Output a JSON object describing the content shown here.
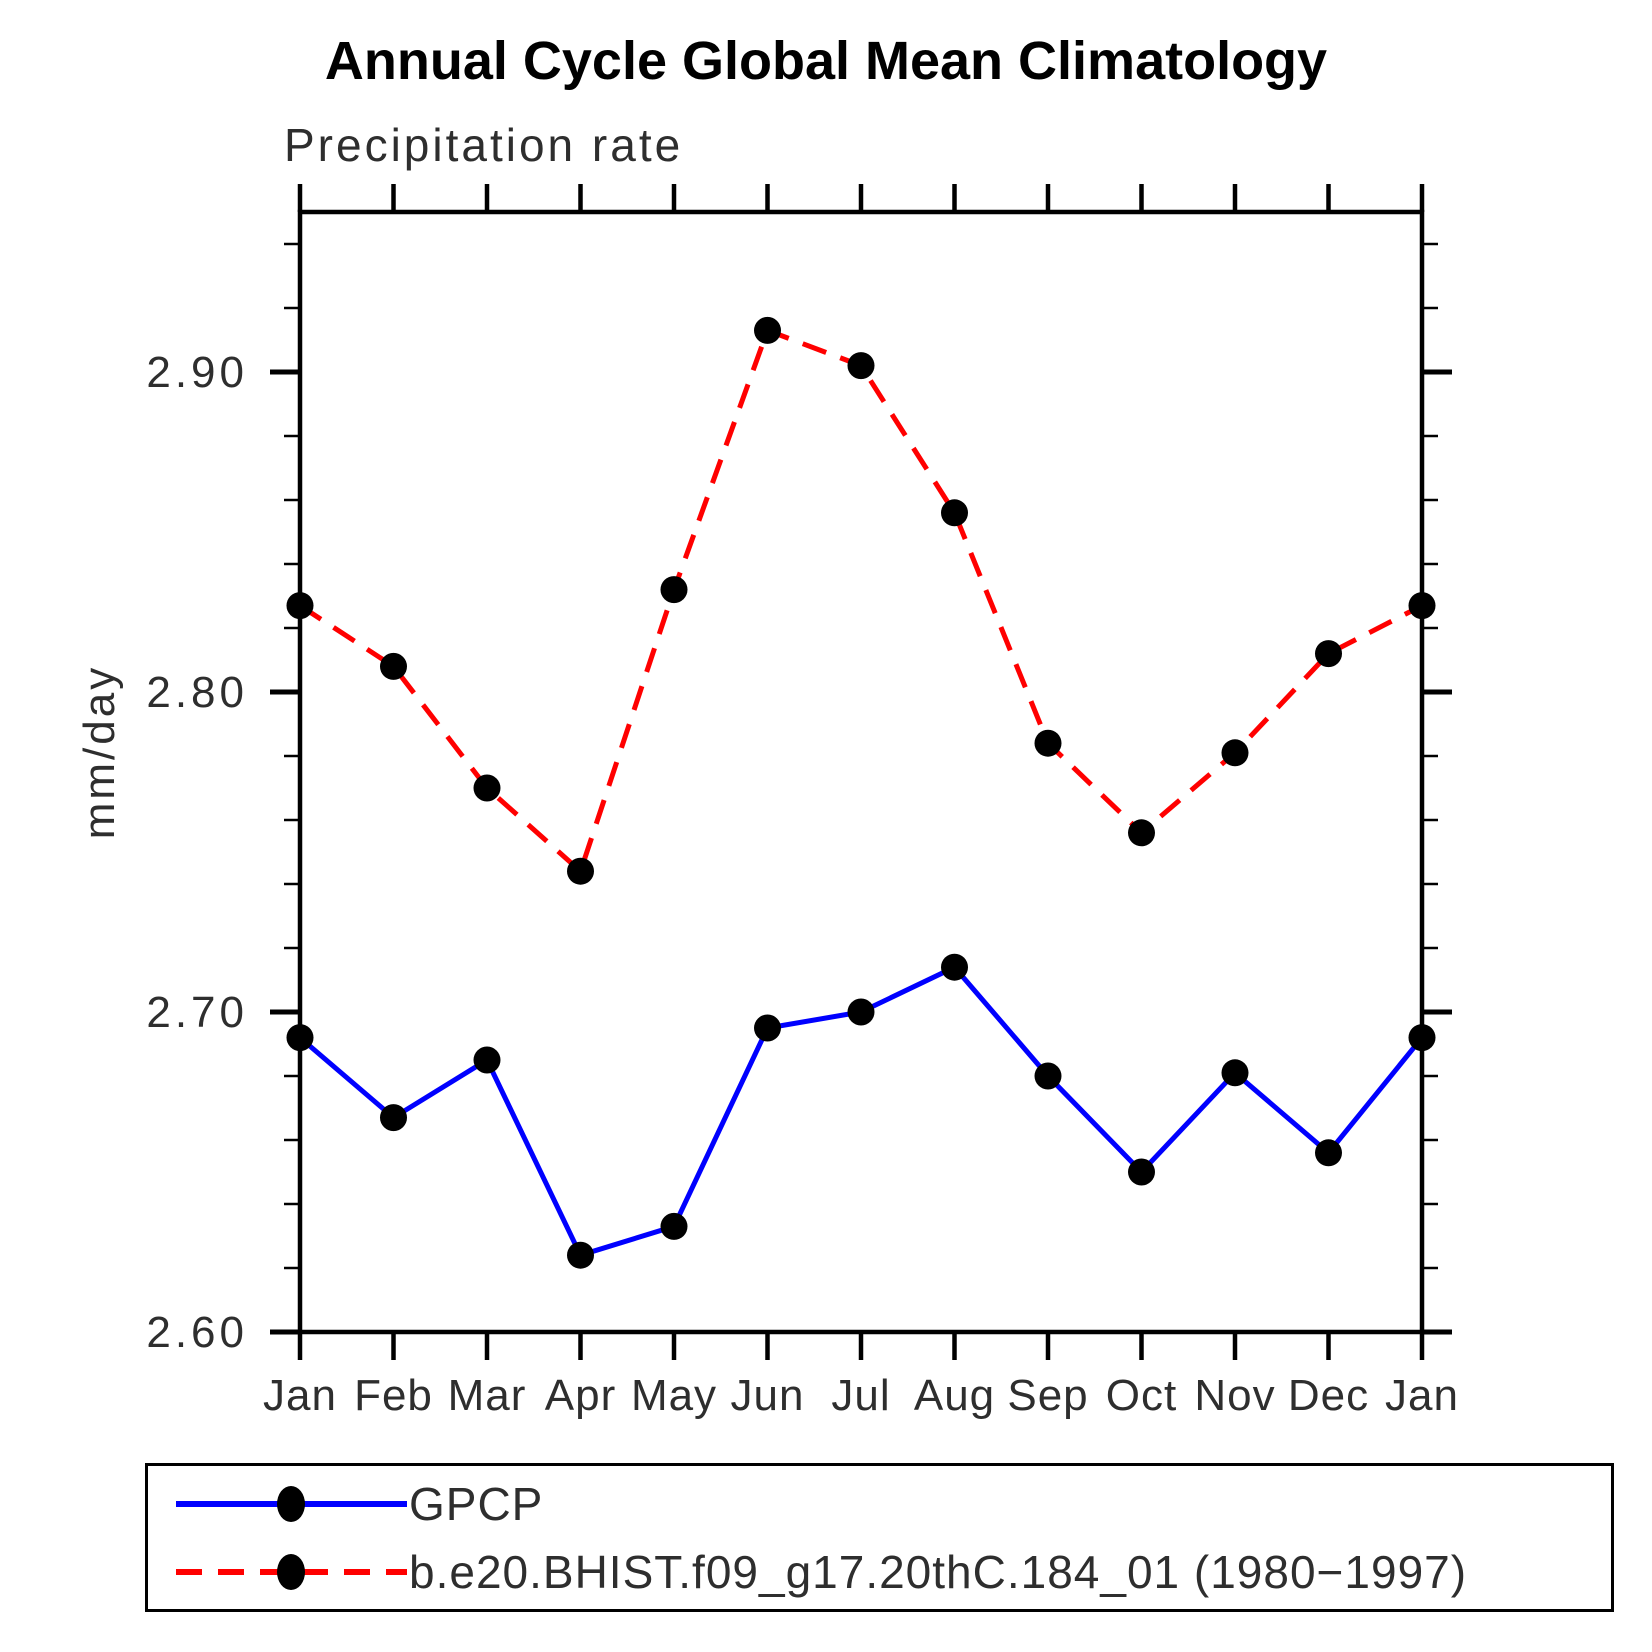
{
  "page": {
    "title": "Annual Cycle Global Mean Climatology",
    "subtitle": "Precipitation rate",
    "ylabel": "mm/day"
  },
  "legend": {
    "position": "bottom",
    "entries": [
      {
        "label": "GPCP",
        "color": "#0000ff",
        "line_style": "solid",
        "marker": "circle",
        "marker_color": "#000000"
      },
      {
        "label": "b.e20.BHIST.f09_g17.20thC.184_01 (1980−1997)",
        "color": "#ff0000",
        "line_style": "dashed",
        "marker": "circle",
        "marker_color": "#000000"
      }
    ]
  },
  "chart_data": {
    "type": "line",
    "title": "Annual Cycle Global Mean Climatology",
    "subtitle": "Precipitation rate",
    "xlabel": "",
    "ylabel": "mm/day",
    "categories": [
      "Jan",
      "Feb",
      "Mar",
      "Apr",
      "May",
      "Jun",
      "Jul",
      "Aug",
      "Sep",
      "Oct",
      "Nov",
      "Dec",
      "Jan"
    ],
    "series": [
      {
        "name": "GPCP",
        "color": "#0000ff",
        "line_style": "solid",
        "marker": "circle",
        "marker_color": "#000000",
        "values": [
          2.692,
          2.667,
          2.685,
          2.624,
          2.633,
          2.695,
          2.7,
          2.714,
          2.68,
          2.65,
          2.681,
          2.656,
          2.692
        ]
      },
      {
        "name": "b.e20.BHIST.f09_g17.20thC.184_01 (1980−1997)",
        "color": "#ff0000",
        "line_style": "dashed",
        "marker": "circle",
        "marker_color": "#000000",
        "values": [
          2.827,
          2.808,
          2.77,
          2.744,
          2.832,
          2.913,
          2.902,
          2.856,
          2.784,
          2.756,
          2.781,
          2.812,
          2.827
        ]
      }
    ],
    "ylim": [
      2.6,
      2.95
    ],
    "yticks_major": [
      2.6,
      2.7,
      2.8,
      2.9
    ],
    "ytick_labels": [
      "2.60",
      "2.70",
      "2.80",
      "2.90"
    ],
    "ytick_minor_step": 0.02,
    "grid": false,
    "frame": "box",
    "tick_direction": "out",
    "legend_position": "bottom",
    "axis_color": "#000000"
  }
}
